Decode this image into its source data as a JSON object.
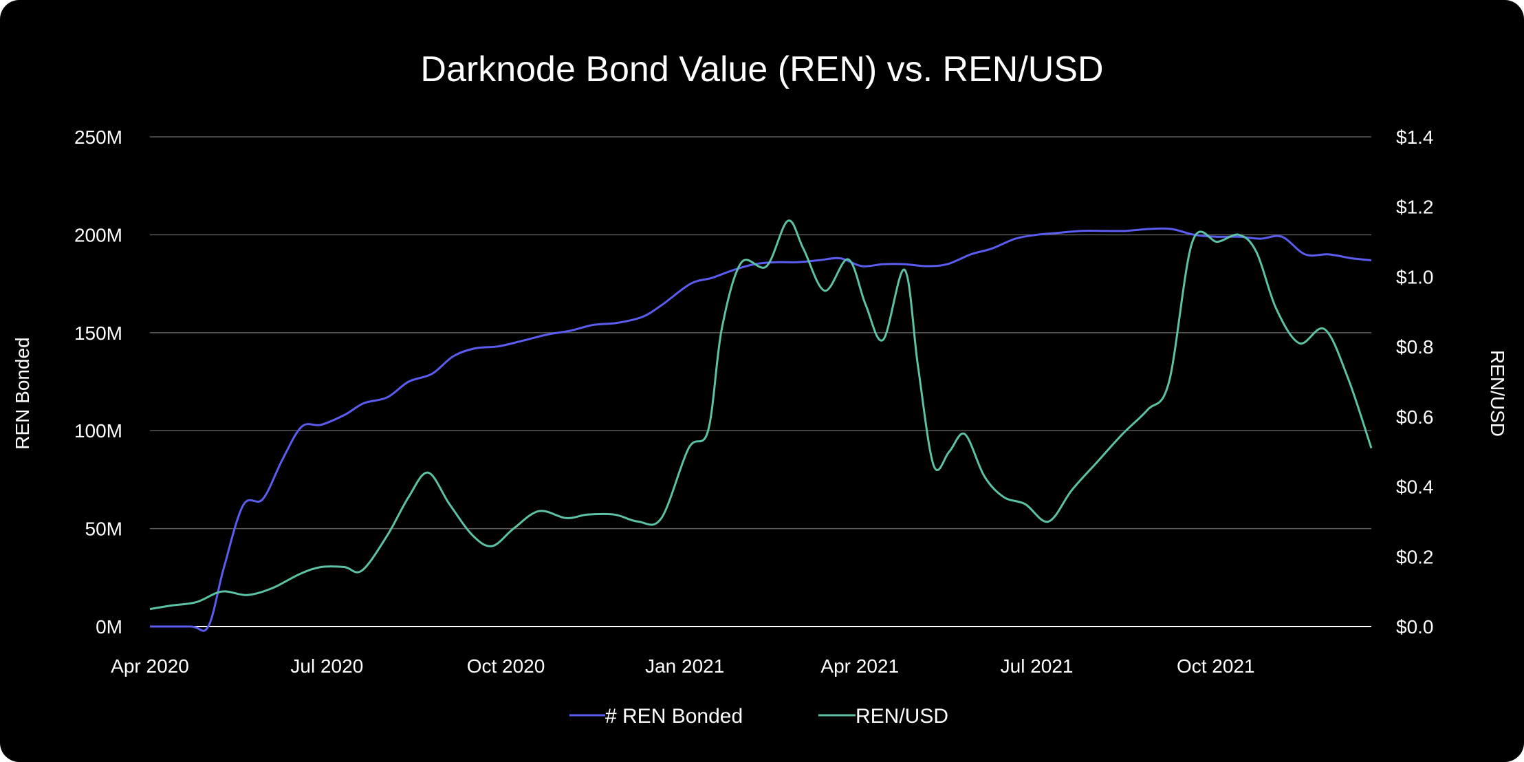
{
  "chart_data": {
    "type": "line",
    "title": "Darknode Bond Value (REN) vs. REN/USD",
    "ylabel": "REN Bonded",
    "y2label": "REN/USD",
    "ylim": [
      0,
      250000000
    ],
    "y2lim": [
      0,
      1.4
    ],
    "y_ticks": [
      {
        "value": 0,
        "label": "0M"
      },
      {
        "value": 50000000,
        "label": "50M"
      },
      {
        "value": 100000000,
        "label": "100M"
      },
      {
        "value": 150000000,
        "label": "150M"
      },
      {
        "value": 200000000,
        "label": "200M"
      },
      {
        "value": 250000000,
        "label": "250M"
      }
    ],
    "y2_ticks": [
      {
        "value": 0,
        "label": "$0.0"
      },
      {
        "value": 0.2,
        "label": "$0.2"
      },
      {
        "value": 0.4,
        "label": "$0.4"
      },
      {
        "value": 0.6,
        "label": "$0.6"
      },
      {
        "value": 0.8,
        "label": "$0.8"
      },
      {
        "value": 1.0,
        "label": "$1.0"
      },
      {
        "value": 1.2,
        "label": "$1.2"
      },
      {
        "value": 1.4,
        "label": "$1.4"
      }
    ],
    "x_range": [
      "2020-04-01",
      "2021-12-20"
    ],
    "x_ticks": [
      {
        "date": "2020-04-01",
        "label": "Apr 2020"
      },
      {
        "date": "2020-07-01",
        "label": "Jul 2020"
      },
      {
        "date": "2020-10-01",
        "label": "Oct 2020"
      },
      {
        "date": "2021-01-01",
        "label": "Jan 2021"
      },
      {
        "date": "2021-04-01",
        "label": "Apr 2021"
      },
      {
        "date": "2021-07-01",
        "label": "Jul 2021"
      },
      {
        "date": "2021-10-01",
        "label": "Oct 2021"
      }
    ],
    "grid": true,
    "legend_position": "bottom",
    "series": [
      {
        "name": "# REN Bonded",
        "axis": "left",
        "color": "#5b5cf0",
        "points": [
          [
            "2020-04-01",
            0
          ],
          [
            "2020-04-22",
            0
          ],
          [
            "2020-05-01",
            0
          ],
          [
            "2020-05-09",
            30000000
          ],
          [
            "2020-05-19",
            62000000
          ],
          [
            "2020-05-29",
            65000000
          ],
          [
            "2020-06-08",
            85000000
          ],
          [
            "2020-06-18",
            102000000
          ],
          [
            "2020-06-28",
            103000000
          ],
          [
            "2020-07-10",
            108000000
          ],
          [
            "2020-07-20",
            114000000
          ],
          [
            "2020-08-01",
            117000000
          ],
          [
            "2020-08-12",
            125000000
          ],
          [
            "2020-08-24",
            129000000
          ],
          [
            "2020-09-04",
            138000000
          ],
          [
            "2020-09-15",
            142000000
          ],
          [
            "2020-09-27",
            143000000
          ],
          [
            "2020-10-10",
            146000000
          ],
          [
            "2020-10-22",
            149000000
          ],
          [
            "2020-11-03",
            151000000
          ],
          [
            "2020-11-15",
            154000000
          ],
          [
            "2020-11-27",
            155000000
          ],
          [
            "2020-12-10",
            158000000
          ],
          [
            "2020-12-20",
            164000000
          ],
          [
            "2021-01-04",
            175000000
          ],
          [
            "2021-01-15",
            178000000
          ],
          [
            "2021-01-26",
            182000000
          ],
          [
            "2021-02-06",
            185000000
          ],
          [
            "2021-02-17",
            186000000
          ],
          [
            "2021-02-28",
            186000000
          ],
          [
            "2021-03-11",
            187000000
          ],
          [
            "2021-03-22",
            188000000
          ],
          [
            "2021-04-02",
            184000000
          ],
          [
            "2021-04-13",
            185000000
          ],
          [
            "2021-04-24",
            185000000
          ],
          [
            "2021-05-05",
            184000000
          ],
          [
            "2021-05-16",
            185000000
          ],
          [
            "2021-05-28",
            190000000
          ],
          [
            "2021-06-08",
            193000000
          ],
          [
            "2021-06-20",
            198000000
          ],
          [
            "2021-07-01",
            200000000
          ],
          [
            "2021-07-12",
            201000000
          ],
          [
            "2021-07-24",
            202000000
          ],
          [
            "2021-08-05",
            202000000
          ],
          [
            "2021-08-16",
            202000000
          ],
          [
            "2021-08-28",
            203000000
          ],
          [
            "2021-09-08",
            203000000
          ],
          [
            "2021-09-20",
            200000000
          ],
          [
            "2021-10-01",
            199000000
          ],
          [
            "2021-10-13",
            199000000
          ],
          [
            "2021-10-24",
            198000000
          ],
          [
            "2021-11-04",
            199000000
          ],
          [
            "2021-11-16",
            190000000
          ],
          [
            "2021-11-28",
            190000000
          ],
          [
            "2021-12-10",
            188000000
          ],
          [
            "2021-12-20",
            187000000
          ]
        ]
      },
      {
        "name": "REN/USD",
        "axis": "right",
        "color": "#5cc1a5",
        "points": [
          [
            "2020-04-01",
            0.05
          ],
          [
            "2020-04-12",
            0.06
          ],
          [
            "2020-04-25",
            0.07
          ],
          [
            "2020-05-08",
            0.1
          ],
          [
            "2020-05-21",
            0.09
          ],
          [
            "2020-06-03",
            0.11
          ],
          [
            "2020-06-17",
            0.15
          ],
          [
            "2020-06-28",
            0.17
          ],
          [
            "2020-07-10",
            0.17
          ],
          [
            "2020-07-19",
            0.16
          ],
          [
            "2020-08-01",
            0.26
          ],
          [
            "2020-08-12",
            0.37
          ],
          [
            "2020-08-22",
            0.44
          ],
          [
            "2020-09-02",
            0.35
          ],
          [
            "2020-09-14",
            0.26
          ],
          [
            "2020-09-24",
            0.23
          ],
          [
            "2020-10-05",
            0.28
          ],
          [
            "2020-10-18",
            0.33
          ],
          [
            "2020-11-01",
            0.31
          ],
          [
            "2020-11-12",
            0.32
          ],
          [
            "2020-11-26",
            0.32
          ],
          [
            "2020-12-08",
            0.3
          ],
          [
            "2020-12-20",
            0.31
          ],
          [
            "2021-01-03",
            0.51
          ],
          [
            "2021-01-13",
            0.56
          ],
          [
            "2021-01-20",
            0.85
          ],
          [
            "2021-01-30",
            1.04
          ],
          [
            "2021-02-12",
            1.03
          ],
          [
            "2021-02-23",
            1.16
          ],
          [
            "2021-03-03",
            1.08
          ],
          [
            "2021-03-14",
            0.96
          ],
          [
            "2021-03-26",
            1.05
          ],
          [
            "2021-04-04",
            0.92
          ],
          [
            "2021-04-13",
            0.82
          ],
          [
            "2021-04-24",
            1.02
          ],
          [
            "2021-05-01",
            0.74
          ],
          [
            "2021-05-09",
            0.46
          ],
          [
            "2021-05-17",
            0.5
          ],
          [
            "2021-05-25",
            0.55
          ],
          [
            "2021-06-04",
            0.43
          ],
          [
            "2021-06-14",
            0.37
          ],
          [
            "2021-06-25",
            0.35
          ],
          [
            "2021-07-07",
            0.3
          ],
          [
            "2021-07-19",
            0.39
          ],
          [
            "2021-08-01",
            0.47
          ],
          [
            "2021-08-14",
            0.55
          ],
          [
            "2021-08-27",
            0.62
          ],
          [
            "2021-09-07",
            0.7
          ],
          [
            "2021-09-19",
            1.1
          ],
          [
            "2021-10-02",
            1.1
          ],
          [
            "2021-10-13",
            1.12
          ],
          [
            "2021-10-22",
            1.07
          ],
          [
            "2021-11-01",
            0.91
          ],
          [
            "2021-11-13",
            0.81
          ],
          [
            "2021-11-26",
            0.85
          ],
          [
            "2021-12-08",
            0.71
          ],
          [
            "2021-12-20",
            0.51
          ]
        ]
      }
    ]
  }
}
